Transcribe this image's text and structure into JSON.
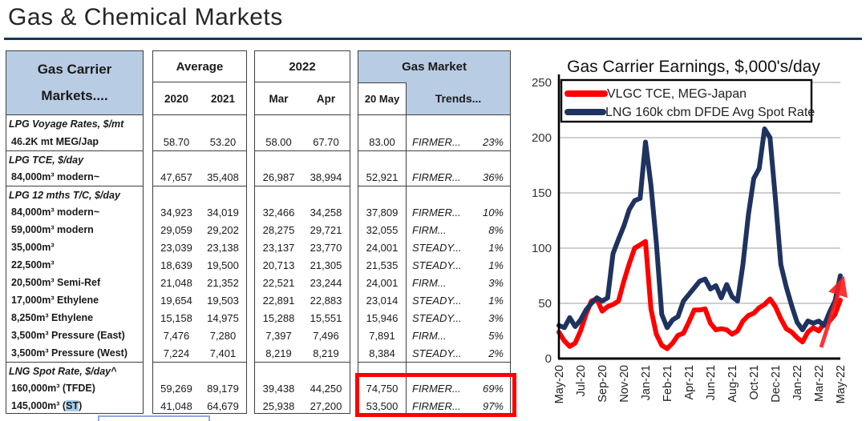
{
  "page": {
    "title": "Gas & Chemical Markets"
  },
  "table": {
    "header": {
      "line1": "Gas Carrier",
      "line2": "Markets....",
      "avg_title": "Average",
      "avg_cols": [
        "2020",
        "2021"
      ],
      "y2022_title": "2022",
      "y2022_cols": [
        "Mar",
        "Apr"
      ],
      "gas_title": "Gas Market",
      "gas_cols": [
        "20 May",
        "Trends..."
      ]
    },
    "rows": [
      {
        "t": "section",
        "label": "LPG Voyage Rates, $/mt"
      },
      {
        "t": "item",
        "label": "46.2K mt MEG/Jap",
        "v": [
          "58.70",
          "53.20",
          "58.00",
          "67.70",
          "83.00"
        ],
        "trend": "FIRMER...",
        "pct": "23%"
      },
      {
        "t": "section",
        "label": "LPG TCE, $/day"
      },
      {
        "t": "item",
        "label": "84,000m³ modern~",
        "v": [
          "47,657",
          "35,408",
          "26,987",
          "38,994",
          "52,921"
        ],
        "trend": "FIRMER...",
        "pct": "36%"
      },
      {
        "t": "section",
        "label": "LPG 12 mths T/C, $/day"
      },
      {
        "t": "item",
        "label": "84,000m³ modern~",
        "v": [
          "34,923",
          "34,019",
          "32,466",
          "34,258",
          "37,809"
        ],
        "trend": "FIRMER...",
        "pct": "10%"
      },
      {
        "t": "item",
        "label": "59,000m³ modern",
        "v": [
          "29,059",
          "29,202",
          "28,275",
          "29,721",
          "32,055"
        ],
        "trend": "FIRM...",
        "pct": "8%"
      },
      {
        "t": "item",
        "label": "35,000m³",
        "v": [
          "23,039",
          "23,138",
          "23,137",
          "23,770",
          "24,001"
        ],
        "trend": "STEADY...",
        "pct": "1%"
      },
      {
        "t": "item",
        "label": "22,500m³",
        "v": [
          "18,639",
          "19,500",
          "20,713",
          "21,305",
          "21,535"
        ],
        "trend": "STEADY...",
        "pct": "1%"
      },
      {
        "t": "item",
        "label": "20,500m³ Semi-Ref",
        "v": [
          "21,048",
          "21,352",
          "22,521",
          "23,244",
          "24,001"
        ],
        "trend": "FIRM...",
        "pct": "3%"
      },
      {
        "t": "item",
        "label": "17,000m³ Ethylene",
        "v": [
          "19,654",
          "19,503",
          "22,891",
          "22,883",
          "23,014"
        ],
        "trend": "STEADY...",
        "pct": "1%"
      },
      {
        "t": "item",
        "label": "8,250m³ Ethylene",
        "v": [
          "15,158",
          "14,975",
          "15,288",
          "15,551",
          "15,946"
        ],
        "trend": "STEADY...",
        "pct": "3%"
      },
      {
        "t": "item",
        "label": "3,500m³ Pressure (East)",
        "v": [
          "7,476",
          "7,280",
          "7,397",
          "7,496",
          "7,891"
        ],
        "trend": "FIRM...",
        "pct": "5%"
      },
      {
        "t": "item",
        "label": "3,500m³ Pressure (West)",
        "v": [
          "7,224",
          "7,401",
          "8,219",
          "8,219",
          "8,384"
        ],
        "trend": "STEADY...",
        "pct": "2%"
      },
      {
        "t": "section",
        "label": "LNG Spot Rate, $/day^"
      },
      {
        "t": "item",
        "label": "160,000m³ (TFDE)",
        "v": [
          "59,269",
          "89,179",
          "39,438",
          "44,250",
          "74,750"
        ],
        "trend": "FIRMER...",
        "pct": "69%"
      },
      {
        "t": "item",
        "label": "145,000m³ (ST)",
        "hl": "ST",
        "v": [
          "41,048",
          "64,679",
          "25,938",
          "27,200",
          "53,500"
        ],
        "trend": "FIRMER...",
        "pct": "97%"
      }
    ]
  },
  "annotations": {
    "red_box": "red rectangle highlighting 20 May values and trends of LNG spot rate rows",
    "st_highlight_color": "#a9cde9",
    "trend_arrow": "red upward arrow at chart lower right"
  },
  "colors": {
    "header_blue": "#b8cce4",
    "rule_navy": "#17375d",
    "vlgc_red": "#fe0000",
    "lng_navy": "#1f3360",
    "grid_gray": "#bfbfbf"
  },
  "chart_data": {
    "type": "line",
    "title": "Gas Carrier Earnings, $,000's/day",
    "x_start": "May-20",
    "x_end": "May-22",
    "x_sampling": "bi-weekly",
    "x_tick_labels": [
      "May-20",
      "Jul-20",
      "Sep-20",
      "Nov-20",
      "Jan-21",
      "Feb-21",
      "Apr-21",
      "Jun-21",
      "Aug-21",
      "Oct-21",
      "Dec-21",
      "Jan-22",
      "Mar-22",
      "May-22"
    ],
    "ylim": [
      0,
      250
    ],
    "yticks": [
      0,
      50,
      100,
      150,
      200,
      250
    ],
    "grid": "horizontal",
    "legend_position": "top-left-inside",
    "series": [
      {
        "name": "VLGC TCE, MEG-Japan",
        "color": "#fe0000",
        "values": [
          24,
          16,
          11,
          14,
          25,
          40,
          52,
          54,
          43,
          47,
          49,
          52,
          70,
          86,
          100,
          103,
          106,
          45,
          22,
          12,
          9,
          14,
          21,
          23,
          33,
          44,
          44,
          45,
          32,
          26,
          27,
          26,
          22,
          25,
          34,
          39,
          41,
          46,
          49,
          54,
          47,
          36,
          27,
          24,
          19,
          15,
          24,
          28,
          25,
          32,
          34,
          40,
          53
        ]
      },
      {
        "name": "LNG 160k cbm DFDE Avg Spot Rate",
        "color": "#1f3360",
        "values": [
          30,
          28,
          37,
          29,
          35,
          44,
          50,
          55,
          52,
          55,
          95,
          108,
          120,
          135,
          143,
          145,
          196,
          157,
          105,
          40,
          28,
          35,
          38,
          52,
          58,
          64,
          70,
          72,
          63,
          66,
          55,
          67,
          56,
          52,
          85,
          130,
          163,
          172,
          208,
          200,
          145,
          85,
          65,
          48,
          33,
          26,
          34,
          32,
          34,
          30,
          42,
          52,
          75
        ]
      }
    ]
  }
}
